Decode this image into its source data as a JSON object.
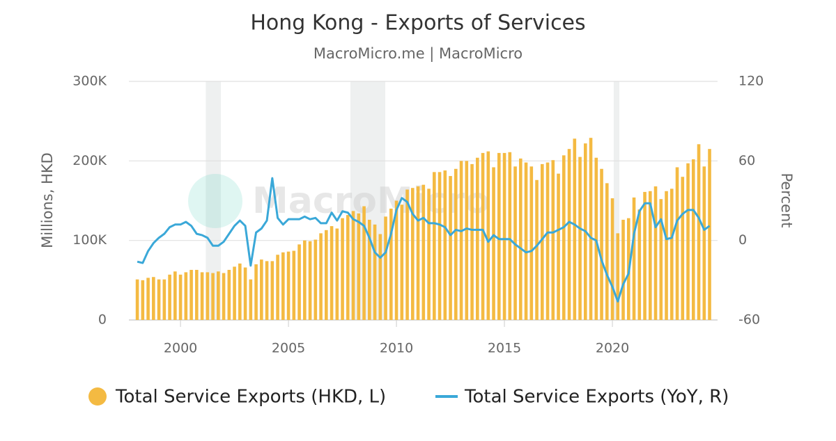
{
  "chart_data": {
    "type": "bar_line",
    "title": "Hong Kong - Exports of Services",
    "subtitle": "MacroMicro.me | MacroMicro",
    "watermark": "MacroMicro",
    "y_axis_label": "Millions, HKD",
    "y2_axis_label": "Percent",
    "xlim": [
      1997.61,
      2024.87
    ],
    "xticks": [
      2000,
      2005,
      2010,
      2015,
      2020
    ],
    "ylim": [
      0,
      300000
    ],
    "yticks": [
      0,
      {
        "value": 100000,
        "label": "100K"
      },
      {
        "value": 200000,
        "label": "200K"
      },
      {
        "value": 300000,
        "label": "300K"
      }
    ],
    "y2lim": [
      -60,
      120
    ],
    "y2ticks": [
      -60,
      0,
      60,
      120
    ],
    "grid": true,
    "legend": "bottom",
    "shaded_ranges": [
      [
        2001.17,
        2001.87
      ],
      [
        2007.87,
        2009.48
      ],
      [
        2020.06,
        2020.32
      ]
    ],
    "x": [
      1998,
      1998.25,
      1998.5,
      1998.75,
      1999,
      1999.25,
      1999.5,
      1999.75,
      2000,
      2000.25,
      2000.5,
      2000.75,
      2001,
      2001.25,
      2001.5,
      2001.75,
      2002,
      2002.25,
      2002.5,
      2002.75,
      2003,
      2003.25,
      2003.5,
      2003.75,
      2004,
      2004.25,
      2004.5,
      2004.75,
      2005,
      2005.25,
      2005.5,
      2005.75,
      2006,
      2006.25,
      2006.5,
      2006.75,
      2007,
      2007.25,
      2007.5,
      2007.75,
      2008,
      2008.25,
      2008.5,
      2008.75,
      2009,
      2009.25,
      2009.5,
      2009.75,
      2010,
      2010.25,
      2010.5,
      2010.75,
      2011,
      2011.25,
      2011.5,
      2011.75,
      2012,
      2012.25,
      2012.5,
      2012.75,
      2013,
      2013.25,
      2013.5,
      2013.75,
      2014,
      2014.25,
      2014.5,
      2014.75,
      2015,
      2015.25,
      2015.5,
      2015.75,
      2016,
      2016.25,
      2016.5,
      2016.75,
      2017,
      2017.25,
      2017.5,
      2017.75,
      2018,
      2018.25,
      2018.5,
      2018.75,
      2019,
      2019.25,
      2019.5,
      2019.75,
      2020,
      2020.25,
      2020.5,
      2020.75,
      2021,
      2021.25,
      2021.5,
      2021.75,
      2022,
      2022.25,
      2022.5,
      2022.75,
      2023,
      2023.25,
      2023.5,
      2023.75,
      2024,
      2024.25,
      2024.5
    ],
    "series": [
      {
        "name": "Total Service Exports (HKD, L)",
        "type": "bar",
        "color": "#f4ba42",
        "values": [
          51000,
          50000,
          53000,
          54000,
          51000,
          51000,
          57000,
          61000,
          57000,
          60000,
          63000,
          63000,
          60000,
          60000,
          59000,
          61000,
          59000,
          63000,
          67000,
          71000,
          66000,
          51000,
          70000,
          76000,
          74000,
          74000,
          82000,
          85000,
          86000,
          87000,
          95000,
          100000,
          99000,
          101000,
          109000,
          113000,
          118000,
          115000,
          128000,
          132000,
          137000,
          134000,
          143000,
          126000,
          120000,
          108000,
          130000,
          140000,
          150000,
          145000,
          164000,
          166000,
          168000,
          170000,
          165000,
          186000,
          186000,
          188000,
          181000,
          190000,
          200000,
          200000,
          196000,
          204000,
          210000,
          212000,
          192000,
          210000,
          210000,
          211000,
          193000,
          203000,
          198000,
          193000,
          176000,
          196000,
          198000,
          201000,
          184000,
          207000,
          215000,
          228000,
          205000,
          222000,
          229000,
          204000,
          190000,
          172000,
          153000,
          109000,
          126000,
          128000,
          154000,
          139000,
          161000,
          162000,
          168000,
          152000,
          162000,
          165000,
          192000,
          180000,
          197000,
          202000,
          221000,
          193000,
          215000
        ]
      },
      {
        "name": "Total Service Exports (YoY, R)",
        "type": "line",
        "axis": "y2",
        "color": "#3aa8d8",
        "values": [
          -16,
          -17,
          -8,
          -2,
          2,
          5,
          10,
          12,
          12,
          14,
          11,
          5,
          4,
          2,
          -4,
          -4,
          -1,
          5,
          11,
          15,
          11,
          -19,
          6,
          9,
          15,
          47,
          17,
          12,
          16,
          16,
          16,
          18,
          16,
          17,
          13,
          13,
          21,
          15,
          22,
          21,
          16,
          14,
          11,
          2,
          -9,
          -13,
          -9,
          5,
          23,
          32,
          29,
          20,
          15,
          17,
          13,
          13,
          12,
          10,
          4,
          8,
          7,
          9,
          8,
          8,
          8,
          -1,
          4,
          1,
          1,
          1,
          -3,
          -6,
          -9,
          -8,
          -4,
          1,
          6,
          6,
          8,
          10,
          14,
          12,
          9,
          7,
          2,
          0,
          -15,
          -26,
          -35,
          -46,
          -33,
          -25,
          5,
          22,
          28,
          28,
          10,
          16,
          1,
          2,
          15,
          20,
          23,
          23,
          17,
          8,
          11
        ]
      }
    ]
  }
}
